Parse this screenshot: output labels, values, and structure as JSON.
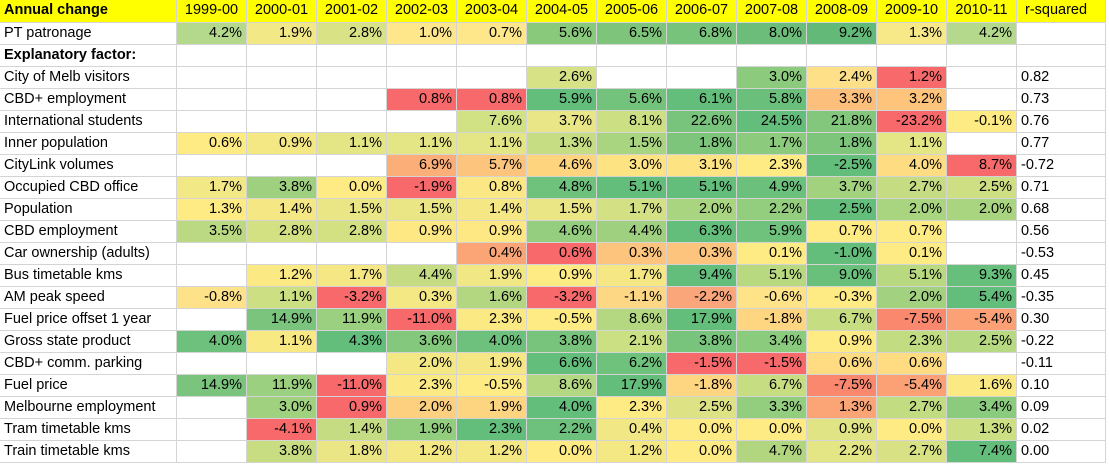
{
  "table": {
    "title": "Annual change",
    "years": [
      "1999-00",
      "2000-01",
      "2001-02",
      "2002-03",
      "2003-04",
      "2004-05",
      "2005-06",
      "2006-07",
      "2007-08",
      "2008-09",
      "2009-10",
      "2010-11"
    ],
    "rsq_header": "r-squared",
    "patronage": {
      "label": "PT patronage",
      "values": [
        "4.2%",
        "1.9%",
        "2.8%",
        "1.0%",
        "0.7%",
        "5.6%",
        "6.5%",
        "6.8%",
        "8.0%",
        "9.2%",
        "1.3%",
        "4.2%"
      ],
      "colors": [
        "#b5d98c",
        "#f2e886",
        "#d9e386",
        "#fde78a",
        "#fee78a",
        "#89c97c",
        "#7ec57b",
        "#77c37c",
        "#6cbd7a",
        "#62b978",
        "#f7e888",
        "#b5d98c"
      ]
    },
    "section_label": "Explanatory factor:",
    "rows": [
      {
        "label": "City of Melb visitors",
        "values": [
          "",
          "",
          "",
          "",
          "",
          "2.6%",
          "",
          "",
          "3.0%",
          "2.4%",
          "1.2%",
          ""
        ],
        "colors": [
          "",
          "",
          "",
          "",
          "",
          "#d6e285",
          "",
          "",
          "#8ccb7d",
          "#fee088",
          "#f8696b",
          ""
        ],
        "r": "0.82"
      },
      {
        "label": "CBD+ employment",
        "values": [
          "",
          "",
          "",
          "0.8%",
          "0.8%",
          "5.9%",
          "5.6%",
          "6.1%",
          "5.8%",
          "3.3%",
          "3.2%",
          ""
        ],
        "colors": [
          "",
          "",
          "",
          "#f8696b",
          "#f8696b",
          "#63be7b",
          "#73c37c",
          "#63be7b",
          "#6ac07b",
          "#fdc07c",
          "#fec47c",
          ""
        ],
        "r": "0.73"
      },
      {
        "label": "International students",
        "values": [
          "",
          "",
          "",
          "",
          "7.6%",
          "3.7%",
          "8.1%",
          "22.6%",
          "24.5%",
          "21.8%",
          "-23.2%",
          "-0.1%"
        ],
        "colors": [
          "",
          "",
          "",
          "",
          "#d1e284",
          "#e8e687",
          "#ccdf83",
          "#78c47d",
          "#63be7b",
          "#83c77d",
          "#f8696b",
          "#ffeb84"
        ],
        "r": "0.76"
      },
      {
        "label": "Inner population",
        "values": [
          "0.6%",
          "0.9%",
          "1.1%",
          "1.1%",
          "1.1%",
          "1.3%",
          "1.5%",
          "1.8%",
          "1.7%",
          "1.8%",
          "1.1%",
          ""
        ],
        "colors": [
          "#ffeb84",
          "#f4e884",
          "#e4e585",
          "#e4e585",
          "#e4e585",
          "#c7dd83",
          "#a9d480",
          "#7ec57c",
          "#8ccb7d",
          "#7ec57c",
          "#e4e585",
          ""
        ],
        "r": "0.77"
      },
      {
        "label": "CityLink volumes",
        "values": [
          "",
          "",
          "",
          "6.9%",
          "5.7%",
          "4.6%",
          "3.0%",
          "3.1%",
          "2.3%",
          "-2.5%",
          "4.0%",
          "8.7%"
        ],
        "colors": [
          "",
          "",
          "",
          "#fcae78",
          "#fdc47d",
          "#fed47f",
          "#fee383",
          "#fee383",
          "#ffeb84",
          "#63be7b",
          "#fedc81",
          "#f8696b"
        ],
        "r": "-0.72"
      },
      {
        "label": "Occupied CBD office",
        "values": [
          "1.7%",
          "3.8%",
          "0.0%",
          "-1.9%",
          "0.8%",
          "4.8%",
          "5.1%",
          "5.1%",
          "4.9%",
          "3.7%",
          "2.7%",
          "2.5%"
        ],
        "colors": [
          "#f2e885",
          "#9fd07f",
          "#ffeb84",
          "#f8696b",
          "#fbe884",
          "#6ec27c",
          "#63be7b",
          "#63be7b",
          "#6bc17c",
          "#a3d27f",
          "#c6dc82",
          "#cedf83"
        ],
        "r": "0.71"
      },
      {
        "label": "Population",
        "values": [
          "1.3%",
          "1.4%",
          "1.5%",
          "1.5%",
          "1.4%",
          "1.5%",
          "1.7%",
          "2.0%",
          "2.2%",
          "2.5%",
          "2.0%",
          "2.0%"
        ],
        "colors": [
          "#ffeb84",
          "#f5e884",
          "#eae685",
          "#eae685",
          "#f5e884",
          "#eae685",
          "#d3e083",
          "#aad580",
          "#93cd7e",
          "#63be7b",
          "#aad580",
          "#aad580"
        ],
        "r": "0.68"
      },
      {
        "label": "CBD employment",
        "values": [
          "3.5%",
          "2.8%",
          "2.8%",
          "0.9%",
          "0.9%",
          "4.6%",
          "4.4%",
          "6.3%",
          "5.9%",
          "0.7%",
          "0.7%",
          ""
        ],
        "colors": [
          "#bad982",
          "#d4e183",
          "#d4e183",
          "#fde883",
          "#fde883",
          "#95ce7e",
          "#9fd07f",
          "#63be7b",
          "#6fc27c",
          "#ffeb84",
          "#ffeb84",
          ""
        ],
        "r": "0.56"
      },
      {
        "label": "Car ownership (adults)",
        "values": [
          "",
          "",
          "",
          "",
          "0.4%",
          "0.6%",
          "0.3%",
          "0.3%",
          "0.1%",
          "-1.0%",
          "0.1%",
          ""
        ],
        "colors": [
          "",
          "",
          "",
          "",
          "#fba576",
          "#f8696b",
          "#fcc47d",
          "#fcc47d",
          "#ffeb84",
          "#63be7b",
          "#ffeb84",
          ""
        ],
        "r": "-0.53"
      },
      {
        "label": "Bus timetable kms",
        "values": [
          "",
          "1.2%",
          "1.7%",
          "4.4%",
          "1.9%",
          "0.9%",
          "1.7%",
          "9.4%",
          "5.1%",
          "9.0%",
          "5.1%",
          "9.3%"
        ],
        "colors": [
          "",
          "#fbe983",
          "#f5e884",
          "#c5dc82",
          "#f1e785",
          "#ffeb84",
          "#f5e884",
          "#63be7b",
          "#b9d981",
          "#69c07b",
          "#b9d981",
          "#66bf7b"
        ],
        "r": "0.45"
      },
      {
        "label": "AM peak speed",
        "values": [
          "-0.8%",
          "1.1%",
          "-3.2%",
          "0.3%",
          "1.6%",
          "-3.2%",
          "-1.1%",
          "-2.2%",
          "-0.6%",
          "-0.3%",
          "2.0%",
          "5.4%"
        ],
        "colors": [
          "#fde28a",
          "#ccdf83",
          "#f8696b",
          "#f4e884",
          "#b3d781",
          "#f8696b",
          "#fdd783",
          "#faa57a",
          "#fee388",
          "#ffeb84",
          "#a2d27f",
          "#63be7b"
        ],
        "r": "-0.35"
      },
      {
        "label": "Fuel price offset 1 year",
        "values": [
          "",
          "14.9%",
          "11.9%",
          "-11.0%",
          "2.3%",
          "-0.5%",
          "8.6%",
          "17.9%",
          "-1.8%",
          "6.7%",
          "-7.5%",
          "-5.4%"
        ],
        "colors": [
          "",
          "#7ac47d",
          "#9ad07f",
          "#f8696b",
          "#fbe983",
          "#ffeb84",
          "#b4d781",
          "#63be7b",
          "#fed581",
          "#c7dd82",
          "#f9886f",
          "#fba175"
        ],
        "r": "0.30"
      },
      {
        "label": "Gross state product",
        "values": [
          "4.0%",
          "1.1%",
          "4.3%",
          "3.6%",
          "4.0%",
          "3.8%",
          "2.1%",
          "3.8%",
          "3.4%",
          "0.9%",
          "2.3%",
          "2.5%"
        ],
        "colors": [
          "#6ec17c",
          "#f9e983",
          "#63be7b",
          "#83c87d",
          "#6ec17c",
          "#78c47d",
          "#cbdf83",
          "#78c47d",
          "#8bcb7e",
          "#ffeb84",
          "#c2dc82",
          "#b7d981"
        ],
        "r": "-0.22"
      },
      {
        "label": "CBD+ comm. parking",
        "values": [
          "",
          "",
          "",
          "2.0%",
          "1.9%",
          "6.6%",
          "6.2%",
          "-1.5%",
          "-1.5%",
          "0.6%",
          "0.6%",
          ""
        ],
        "colors": [
          "",
          "",
          "",
          "#f4e884",
          "#f5e884",
          "#63be7b",
          "#6fc27c",
          "#f8696b",
          "#f8696b",
          "#ffdb81",
          "#ffdb81",
          ""
        ],
        "r": "-0.11"
      },
      {
        "label": "Fuel price",
        "values": [
          "14.9%",
          "11.9%",
          "-11.0%",
          "2.3%",
          "-0.5%",
          "8.6%",
          "17.9%",
          "-1.8%",
          "6.7%",
          "-7.5%",
          "-5.4%",
          "1.6%"
        ],
        "colors": [
          "#7ac47d",
          "#9ad07f",
          "#f8696b",
          "#fbe983",
          "#ffeb84",
          "#b4d781",
          "#63be7b",
          "#fed581",
          "#c7dd82",
          "#f9886f",
          "#fba175",
          "#fbe983"
        ],
        "r": "0.10"
      },
      {
        "label": "Melbourne employment",
        "values": [
          "",
          "3.0%",
          "0.9%",
          "2.0%",
          "1.9%",
          "4.0%",
          "2.3%",
          "2.5%",
          "3.3%",
          "1.3%",
          "2.7%",
          "3.4%"
        ],
        "colors": [
          "",
          "#a0d17f",
          "#f8696b",
          "#fdd07f",
          "#fdd580",
          "#63be7b",
          "#ffeb84",
          "#dde384",
          "#93cd7e",
          "#fba576",
          "#c2dc82",
          "#8bcb7e"
        ],
        "r": "0.09"
      },
      {
        "label": "Tram timetable kms",
        "values": [
          "",
          "-4.1%",
          "1.4%",
          "1.9%",
          "2.3%",
          "2.2%",
          "0.4%",
          "0.0%",
          "0.0%",
          "0.9%",
          "0.0%",
          "1.3%"
        ],
        "colors": [
          "",
          "#f8696b",
          "#c6dc82",
          "#93cd7e",
          "#63be7b",
          "#6ec17c",
          "#f1e785",
          "#ffeb84",
          "#ffeb84",
          "#e0e485",
          "#ffeb84",
          "#ccdf83"
        ],
        "r": "0.02"
      },
      {
        "label": "Train timetable kms",
        "values": [
          "",
          "3.8%",
          "1.8%",
          "1.2%",
          "1.2%",
          "0.0%",
          "1.2%",
          "0.0%",
          "4.7%",
          "2.2%",
          "2.7%",
          "7.4%"
        ],
        "colors": [
          "",
          "#c8dd82",
          "#eae685",
          "#f4e884",
          "#f4e884",
          "#ffeb84",
          "#f4e884",
          "#ffeb84",
          "#b2d680",
          "#e4e585",
          "#d8e184",
          "#63be7b"
        ],
        "r": "0.00"
      }
    ]
  }
}
